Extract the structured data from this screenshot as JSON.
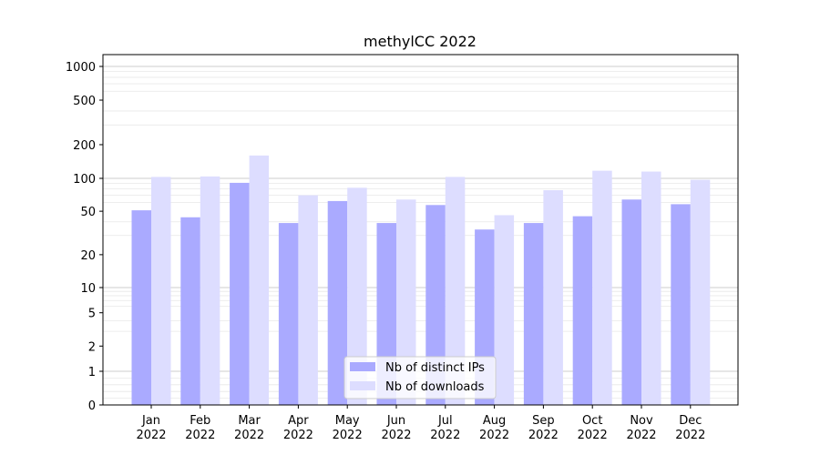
{
  "chart_data": {
    "type": "bar",
    "title": "methylCC 2022",
    "xlabel": "",
    "ylabel": "",
    "y_scale": "symlog",
    "y_ticks": [
      0,
      1,
      2,
      5,
      10,
      20,
      50,
      100,
      200,
      500,
      1000
    ],
    "y_tick_labels": [
      "0",
      "1",
      "2",
      "5",
      "10",
      "20",
      "50",
      "100",
      "200",
      "500",
      "1000"
    ],
    "ylim": [
      0,
      1200
    ],
    "categories": [
      {
        "month": "Jan",
        "year": "2022"
      },
      {
        "month": "Feb",
        "year": "2022"
      },
      {
        "month": "Mar",
        "year": "2022"
      },
      {
        "month": "Apr",
        "year": "2022"
      },
      {
        "month": "May",
        "year": "2022"
      },
      {
        "month": "Jun",
        "year": "2022"
      },
      {
        "month": "Jul",
        "year": "2022"
      },
      {
        "month": "Aug",
        "year": "2022"
      },
      {
        "month": "Sep",
        "year": "2022"
      },
      {
        "month": "Oct",
        "year": "2022"
      },
      {
        "month": "Nov",
        "year": "2022"
      },
      {
        "month": "Dec",
        "year": "2022"
      }
    ],
    "series": [
      {
        "name": "Nb of distinct IPs",
        "color": "#aaaaff",
        "values": [
          51,
          44,
          91,
          39,
          62,
          39,
          57,
          34,
          39,
          45,
          64,
          58
        ]
      },
      {
        "name": "Nb of downloads",
        "color": "#ddddff",
        "values": [
          103,
          104,
          160,
          70,
          82,
          64,
          103,
          46,
          78,
          117,
          115,
          97
        ]
      }
    ],
    "grid": true,
    "legend": "bottom-center"
  }
}
